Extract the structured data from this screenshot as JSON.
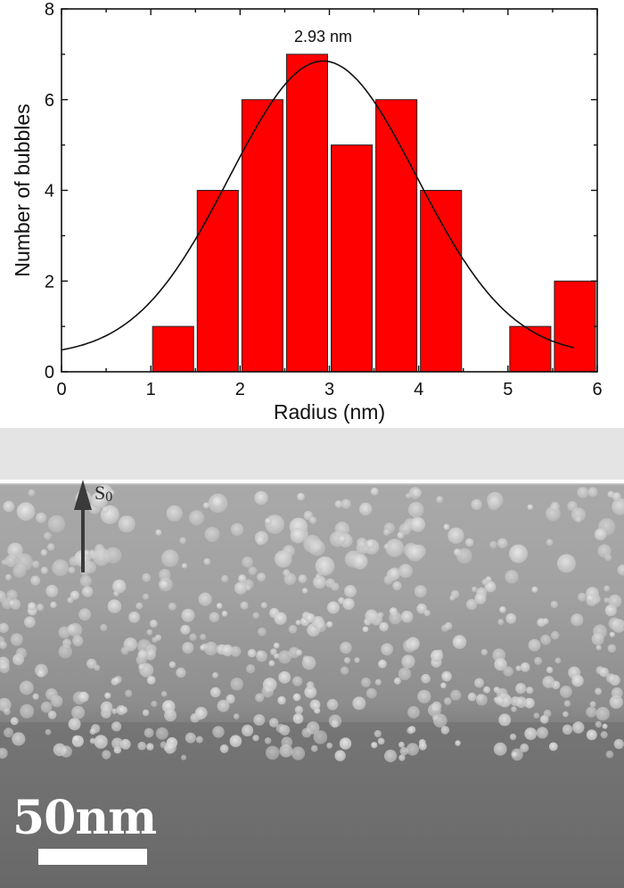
{
  "chart_data": {
    "type": "bar",
    "title": "",
    "xlabel": "Radius (nm)",
    "ylabel": "Number of bubbles",
    "xlim": [
      0,
      6
    ],
    "ylim": [
      0,
      8
    ],
    "x_ticks": [
      0,
      1,
      2,
      3,
      4,
      5,
      6
    ],
    "y_ticks": [
      0,
      2,
      4,
      6,
      8
    ],
    "bin_width": 0.5,
    "categories": [
      "1.0-1.5",
      "1.5-2.0",
      "2.0-2.5",
      "2.5-3.0",
      "3.0-3.5",
      "3.5-4.0",
      "4.0-4.5",
      "4.5-5.0",
      "5.0-5.5",
      "5.5-6.0"
    ],
    "bin_starts": [
      1.0,
      1.5,
      2.0,
      2.5,
      3.0,
      3.5,
      4.0,
      4.5,
      5.0,
      5.5
    ],
    "values": [
      1,
      4,
      6,
      7,
      5,
      6,
      4,
      0,
      1,
      2
    ],
    "bar_color": "#ff0000",
    "fit": {
      "type": "gaussian",
      "peak_x": 2.93,
      "peak_y": 6.85,
      "baseline": 0.35,
      "sigma": 1.05,
      "x_range": [
        0,
        5.75
      ]
    },
    "annotations": [
      {
        "text": "2.93 nm",
        "x": 2.93,
        "y": 7.5
      }
    ],
    "grid": false,
    "legend": null
  },
  "figure": {
    "annotation_label": "2.93 nm",
    "y_axis_label": "Number of bubbles",
    "x_axis_label": "Radius (nm)",
    "y_tick_labels": [
      "0",
      "2",
      "4",
      "6",
      "8"
    ],
    "x_tick_labels": [
      "0",
      "1",
      "2",
      "3",
      "4",
      "5",
      "6"
    ]
  },
  "micrograph": {
    "arrow_label": "S",
    "arrow_label_sub": "0",
    "scale_bar_label": "50nm"
  }
}
